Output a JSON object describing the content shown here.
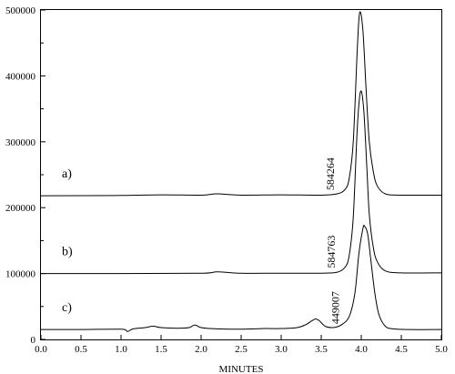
{
  "chart_data": {
    "type": "line",
    "title": "",
    "xlabel": "MINUTES",
    "ylabel": "",
    "xlim": [
      0.0,
      5.0
    ],
    "ylim": [
      0,
      500000
    ],
    "xticks": [
      "0.0",
      "0.5",
      "1.0",
      "1.5",
      "2.0",
      "2.5",
      "3.0",
      "3.5",
      "4.0",
      "4.5",
      "5.0"
    ],
    "yticks": [
      "0",
      "100000",
      "200000",
      "300000",
      "400000",
      "500000"
    ],
    "grid": false,
    "series": [
      {
        "name": "a)",
        "peak_label": "584264",
        "baseline": 218000,
        "peak_x": 3.98,
        "peak_y": 496000,
        "points": [
          [
            0.0,
            218000
          ],
          [
            1.0,
            218500
          ],
          [
            1.5,
            219500
          ],
          [
            2.0,
            219000
          ],
          [
            2.2,
            221000
          ],
          [
            2.5,
            219000
          ],
          [
            3.0,
            219500
          ],
          [
            3.5,
            219000
          ],
          [
            3.7,
            221000
          ],
          [
            3.8,
            228000
          ],
          [
            3.85,
            245000
          ],
          [
            3.9,
            300000
          ],
          [
            3.95,
            440000
          ],
          [
            3.98,
            496000
          ],
          [
            4.02,
            470000
          ],
          [
            4.06,
            380000
          ],
          [
            4.1,
            300000
          ],
          [
            4.15,
            255000
          ],
          [
            4.2,
            233000
          ],
          [
            4.3,
            221000
          ],
          [
            4.5,
            219000
          ],
          [
            5.0,
            219000
          ]
        ]
      },
      {
        "name": "b)",
        "peak_label": "584763",
        "baseline": 100000,
        "peak_x": 3.99,
        "peak_y": 376000,
        "points": [
          [
            0.0,
            100000
          ],
          [
            1.0,
            100000
          ],
          [
            2.0,
            100500
          ],
          [
            2.2,
            102500
          ],
          [
            2.5,
            100500
          ],
          [
            3.0,
            100500
          ],
          [
            3.5,
            100500
          ],
          [
            3.7,
            102000
          ],
          [
            3.8,
            110000
          ],
          [
            3.85,
            128000
          ],
          [
            3.9,
            185000
          ],
          [
            3.95,
            320000
          ],
          [
            3.99,
            376000
          ],
          [
            4.03,
            350000
          ],
          [
            4.07,
            260000
          ],
          [
            4.1,
            190000
          ],
          [
            4.15,
            140000
          ],
          [
            4.2,
            118000
          ],
          [
            4.3,
            104000
          ],
          [
            4.5,
            101000
          ],
          [
            5.0,
            101000
          ]
        ]
      },
      {
        "name": "c)",
        "peak_label": "449007",
        "baseline": 15000,
        "peak_x": 4.04,
        "peak_y": 172000,
        "points": [
          [
            0.0,
            15000
          ],
          [
            0.5,
            15000
          ],
          [
            1.0,
            15500
          ],
          [
            1.08,
            12000
          ],
          [
            1.15,
            16000
          ],
          [
            1.3,
            18000
          ],
          [
            1.4,
            20000
          ],
          [
            1.5,
            18000
          ],
          [
            1.7,
            17000
          ],
          [
            1.85,
            18000
          ],
          [
            1.92,
            22000
          ],
          [
            2.0,
            18000
          ],
          [
            2.2,
            16000
          ],
          [
            2.5,
            15500
          ],
          [
            2.8,
            16500
          ],
          [
            3.0,
            16500
          ],
          [
            3.2,
            18000
          ],
          [
            3.3,
            22000
          ],
          [
            3.38,
            28000
          ],
          [
            3.43,
            31000
          ],
          [
            3.48,
            28000
          ],
          [
            3.55,
            20000
          ],
          [
            3.65,
            18000
          ],
          [
            3.75,
            22000
          ],
          [
            3.85,
            35000
          ],
          [
            3.92,
            70000
          ],
          [
            3.97,
            130000
          ],
          [
            4.02,
            168000
          ],
          [
            4.04,
            172000
          ],
          [
            4.08,
            160000
          ],
          [
            4.12,
            120000
          ],
          [
            4.17,
            70000
          ],
          [
            4.22,
            38000
          ],
          [
            4.3,
            20000
          ],
          [
            4.4,
            16000
          ],
          [
            4.6,
            15000
          ],
          [
            5.0,
            15000
          ]
        ]
      }
    ]
  }
}
